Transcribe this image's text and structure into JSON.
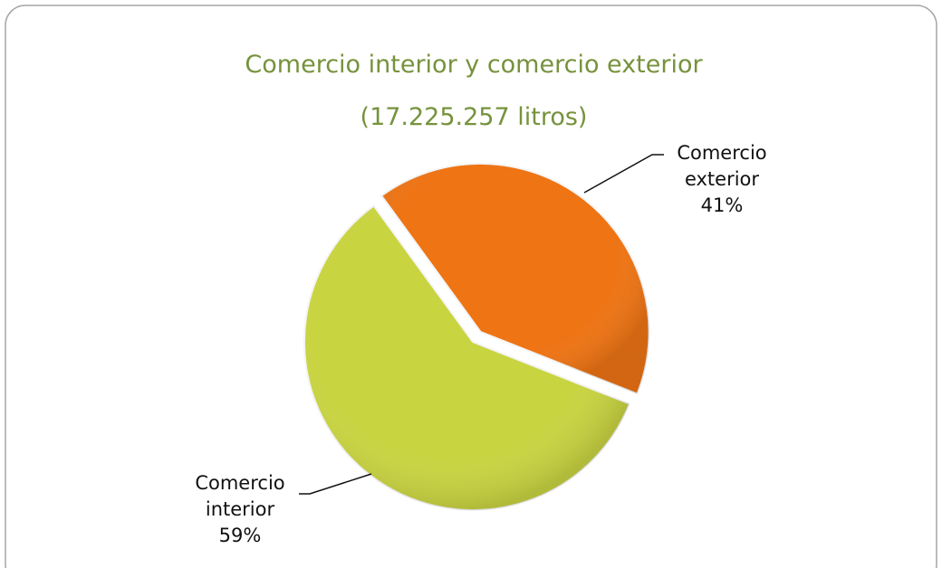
{
  "chart_data": {
    "type": "pie",
    "title": "Comercio interior y comercio exterior",
    "subtitle": "(17.225.257 litros)",
    "categories": [
      "Comercio interior",
      "Comercio exterior"
    ],
    "values": [
      59,
      41
    ],
    "value_labels": [
      "59%",
      "41%"
    ],
    "colors": [
      "#c9d441",
      "#ee7414"
    ]
  }
}
